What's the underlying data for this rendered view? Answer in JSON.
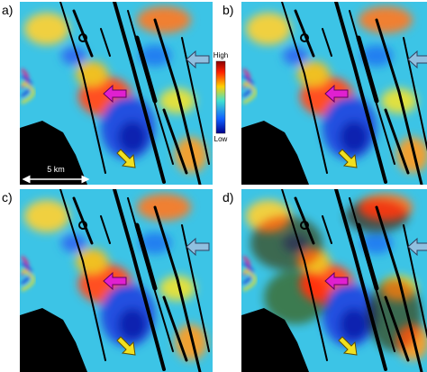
{
  "panels": [
    {
      "label": "a)"
    },
    {
      "label": "b)"
    },
    {
      "label": "c)"
    },
    {
      "label": "d)"
    }
  ],
  "colorbar": {
    "high": "High",
    "low": "Low"
  },
  "scale_bar": {
    "label": "5 km"
  }
}
